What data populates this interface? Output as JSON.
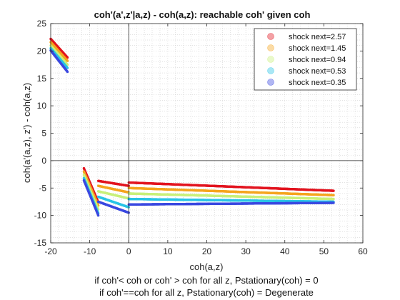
{
  "chart_data": {
    "type": "scatter",
    "title": "coh'(a',z'|a,z) - coh(a,z): reachable coh' given coh",
    "xlabel": "coh(a,z)",
    "ylabel": "coh(a'(a,z), z') - coh(a,z)",
    "xlim": [
      -20,
      60
    ],
    "ylim": [
      -15,
      25
    ],
    "xticks": [
      "-20",
      "-10",
      "0",
      "10",
      "20",
      "30",
      "40",
      "50",
      "60"
    ],
    "yticks": [
      "-15",
      "-10",
      "-5",
      "0",
      "5",
      "10",
      "15",
      "20",
      "25"
    ],
    "grid": "minor-dotted",
    "reference_lines": {
      "x": 0,
      "y": 0
    },
    "legend_position": "top-right",
    "notes": [
      "if coh'< coh or coh' > coh for all z, Pstationary(coh) = 0",
      "if coh'==coh for all z, Pstationary(coh) = Degenerate"
    ],
    "series": [
      {
        "name": "shock next=2.57",
        "color": "#e2141f",
        "segments": [
          {
            "x": [
              -20,
              -15.7
            ],
            "y": [
              22.2,
              18.8
            ]
          },
          {
            "x": [
              -11.5,
              -7.8
            ],
            "y": [
              -1.4,
              -7.6
            ]
          },
          {
            "x": [
              -7.8,
              0
            ],
            "y": [
              -3.7,
              -4.6
            ]
          },
          {
            "x": [
              0,
              52.5
            ],
            "y": [
              -4.0,
              -5.5
            ]
          }
        ]
      },
      {
        "name": "shock next=1.45",
        "color": "#f5a51e",
        "segments": [
          {
            "x": [
              -20,
              -15.7
            ],
            "y": [
              21.6,
              18.2
            ]
          },
          {
            "x": [
              -11.5,
              -7.8
            ],
            "y": [
              -2.0,
              -8.2
            ]
          },
          {
            "x": [
              -7.8,
              0
            ],
            "y": [
              -4.6,
              -5.8
            ]
          },
          {
            "x": [
              0,
              52.5
            ],
            "y": [
              -5.0,
              -6.3
            ]
          }
        ]
      },
      {
        "name": "shock next=0.94",
        "color": "#c8f07a",
        "segments": [
          {
            "x": [
              -20,
              -15.7
            ],
            "y": [
              21.0,
              17.5
            ]
          },
          {
            "x": [
              -11.5,
              -7.8
            ],
            "y": [
              -2.6,
              -8.9
            ]
          },
          {
            "x": [
              -7.8,
              0
            ],
            "y": [
              -5.6,
              -6.9
            ]
          },
          {
            "x": [
              0,
              52.5
            ],
            "y": [
              -6.0,
              -7.0
            ]
          }
        ]
      },
      {
        "name": "shock next=0.53",
        "color": "#29c4e6",
        "segments": [
          {
            "x": [
              -20,
              -15.7
            ],
            "y": [
              20.5,
              16.9
            ]
          },
          {
            "x": [
              -11.5,
              -7.8
            ],
            "y": [
              -3.2,
              -9.6
            ]
          },
          {
            "x": [
              -7.8,
              0
            ],
            "y": [
              -6.6,
              -8.5
            ]
          },
          {
            "x": [
              0,
              52.5
            ],
            "y": [
              -7.0,
              -7.5
            ]
          }
        ]
      },
      {
        "name": "shock next=0.35",
        "color": "#3a48e0",
        "segments": [
          {
            "x": [
              -20,
              -15.7
            ],
            "y": [
              20.1,
              16.2
            ]
          },
          {
            "x": [
              -11.5,
              -7.8
            ],
            "y": [
              -3.6,
              -10.0
            ]
          },
          {
            "x": [
              -7.8,
              0
            ],
            "y": [
              -7.5,
              -9.5
            ]
          },
          {
            "x": [
              0,
              52.5
            ],
            "y": [
              -8.0,
              -7.7
            ]
          }
        ]
      }
    ]
  }
}
